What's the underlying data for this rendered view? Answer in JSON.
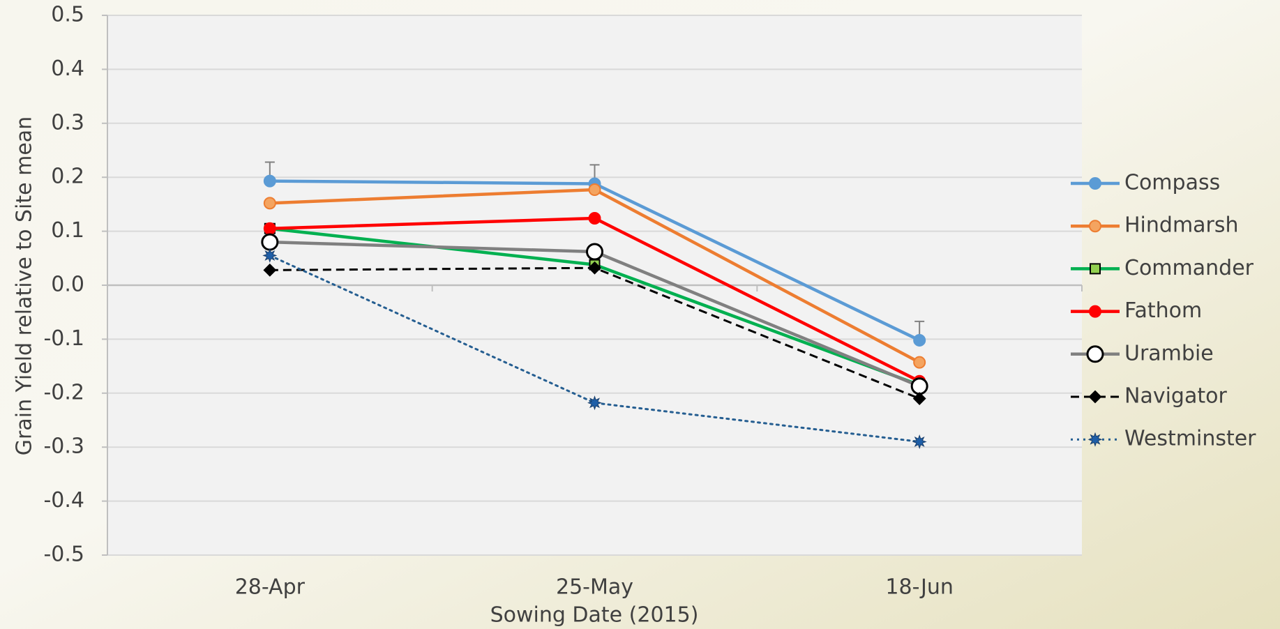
{
  "chart_data": {
    "type": "line",
    "xlabel": "Sowing Date (2015)",
    "ylabel": "Grain Yield relative to Site mean",
    "categories": [
      "28-Apr",
      "25-May",
      "18-Jun"
    ],
    "ylim": [
      -0.5,
      0.5
    ],
    "yticks": [
      0.5,
      0.4,
      0.3,
      0.2,
      0.1,
      {
        "value": 0,
        "label": "0.0"
      },
      -0.1,
      -0.2,
      -0.3,
      -0.4,
      -0.5
    ],
    "grid": true,
    "legend": "right",
    "series": [
      {
        "name": "Compass",
        "color": "#5b9bd5",
        "marker": "circle",
        "marker_fill": "#5b9bd5",
        "line_style": "solid",
        "values": [
          0.193,
          0.188,
          -0.102
        ],
        "errors": [
          0.035,
          0.035,
          0.035
        ]
      },
      {
        "name": "Hindmarsh",
        "color": "#ed7d31",
        "marker": "circle",
        "marker_fill": "#f4a460",
        "line_style": "solid",
        "values": [
          0.152,
          0.177,
          -0.143
        ]
      },
      {
        "name": "Commander",
        "color": "#00b050",
        "marker": "square",
        "marker_fill": "#92d050",
        "line_style": "solid",
        "values": [
          0.105,
          0.038,
          -0.185
        ]
      },
      {
        "name": "Fathom",
        "color": "#ff0000",
        "marker": "circle",
        "marker_fill": "#ff0000",
        "line_style": "solid",
        "values": [
          0.105,
          0.124,
          -0.178
        ]
      },
      {
        "name": "Urambie",
        "color": "#808080",
        "marker": "circle",
        "marker_fill": "#ffffff",
        "line_style": "solid",
        "values": [
          0.08,
          0.062,
          -0.187
        ]
      },
      {
        "name": "Navigator",
        "color": "#000000",
        "marker": "diamond",
        "marker_fill": "#000000",
        "line_style": "dashed",
        "values": [
          0.028,
          0.032,
          -0.21
        ]
      },
      {
        "name": "Westminster",
        "color": "#255e91",
        "marker": "star",
        "marker_fill": "#1f5fa8",
        "line_style": "dotted",
        "values": [
          0.055,
          -0.218,
          -0.29
        ]
      }
    ]
  }
}
